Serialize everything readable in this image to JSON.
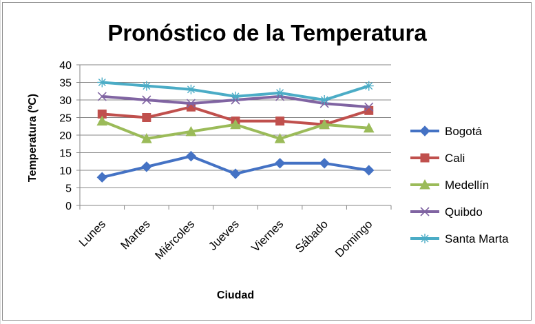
{
  "chart_data": {
    "type": "line",
    "title": "Pronóstico de la Temperatura",
    "xlabel": "Ciudad",
    "ylabel": "Temperatura (ºC)",
    "ylim": [
      0,
      40
    ],
    "yticks": [
      0,
      5,
      10,
      15,
      20,
      25,
      30,
      35,
      40
    ],
    "grid": true,
    "legend_position": "right",
    "categories": [
      "Lunes",
      "Martes",
      "Miércoles",
      "Jueves",
      "Viernes",
      "Sábado",
      "Domingo"
    ],
    "series": [
      {
        "name": "Bogotá",
        "color": "#4472c4",
        "marker": "diamond",
        "values": [
          8,
          11,
          14,
          9,
          12,
          12,
          10
        ]
      },
      {
        "name": "Cali",
        "color": "#c0504d",
        "marker": "square",
        "values": [
          26,
          25,
          28,
          24,
          24,
          23,
          27
        ]
      },
      {
        "name": "Medellín",
        "color": "#9bbb59",
        "marker": "triangle",
        "values": [
          24,
          19,
          21,
          23,
          19,
          23,
          22
        ]
      },
      {
        "name": "Quibdo",
        "color": "#8064a2",
        "marker": "x",
        "values": [
          31,
          30,
          29,
          30,
          31,
          29,
          28
        ]
      },
      {
        "name": "Santa Marta",
        "color": "#4bacc6",
        "marker": "star",
        "values": [
          35,
          34,
          33,
          31,
          32,
          30,
          34
        ]
      }
    ]
  }
}
